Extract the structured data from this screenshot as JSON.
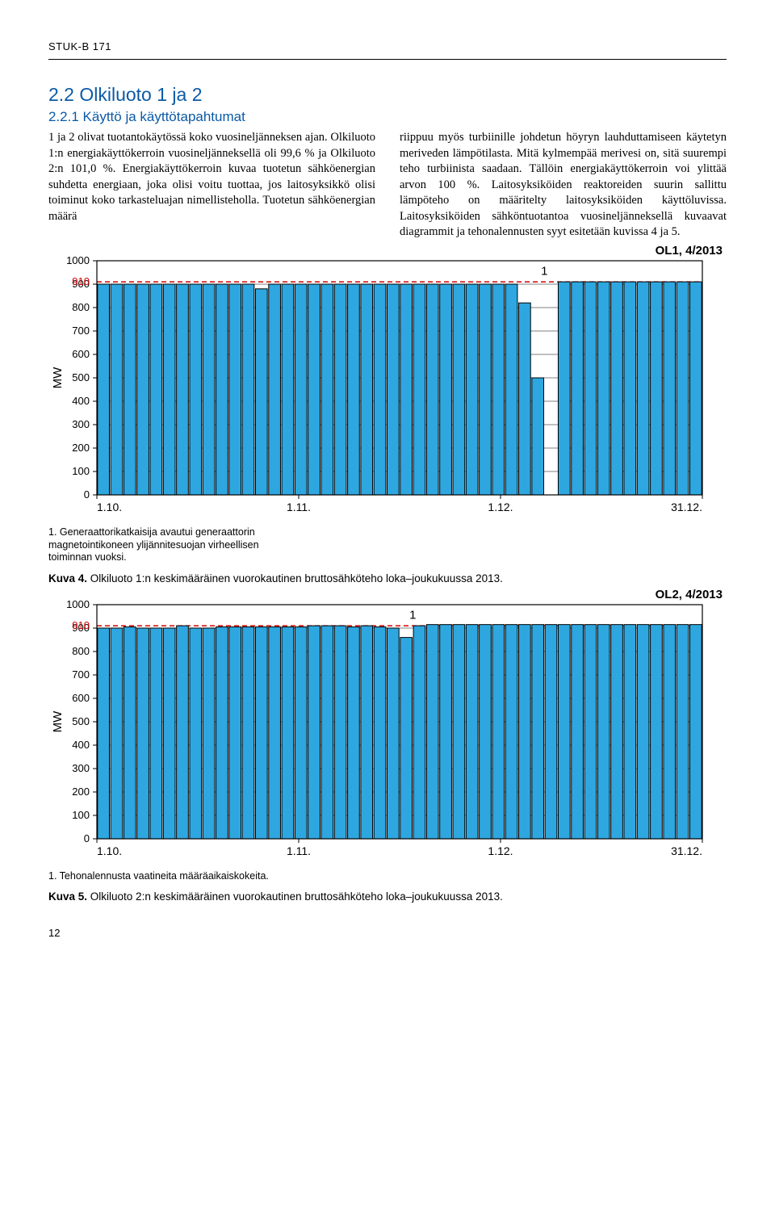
{
  "header": {
    "report_id": "STUK-B 171"
  },
  "section": {
    "title": "2.2 Olkiluoto 1 ja 2",
    "subtitle": "2.2.1 Käyttö ja käyttötapahtumat",
    "para_left": "1 ja 2 olivat tuotantokäytössä koko vuosineljänneksen ajan. Olkiluoto 1:n energiakäyttökerroin vuosineljänneksellä oli 99,6 % ja Olkiluoto 2:n 101,0 %. Energiakäyttökerroin kuvaa tuotetun sähköenergian suhdetta energiaan, joka olisi voitu tuottaa, jos laitosyksikkö olisi toiminut koko tarkasteluajan nimellisteholla. Tuotetun sähköenergian määrä",
    "para_right": "riippuu myös turbiinille johdetun höyryn lauhduttamiseen käytetyn meriveden lämpötilasta. Mitä kylmempää merivesi on, sitä suurempi teho turbiinista saadaan. Tällöin energiakäyttökerroin voi ylittää arvon 100 %. Laitosyksiköiden reaktoreiden suurin sallittu lämpöteho on määritelty laitosyksiköiden käyttöluvissa. Laitosyksiköiden sähköntuotantoa vuosineljänneksellä kuvaavat diagrammit ja tehonalennusten syyt esitetään kuvissa 4 ja 5."
  },
  "chart1": {
    "title_right": "OL1, 4/2013",
    "type": "bar",
    "ylabel": "MW",
    "y_ticks": [
      0,
      100,
      200,
      300,
      400,
      500,
      600,
      700,
      800,
      900,
      1000
    ],
    "ref_line_value": 910,
    "ref_line_label": "910",
    "ref_line_color": "#d40000",
    "bar_fill": "#2ea7e0",
    "bar_stroke": "#000000",
    "grid_color": "#000000",
    "background": "#ffffff",
    "x_ticks": [
      "1.10.",
      "1.11.",
      "1.12.",
      "31.12."
    ],
    "annotation": "1",
    "n_bars": 46,
    "values": [
      900,
      900,
      900,
      900,
      900,
      900,
      900,
      900,
      900,
      900,
      900,
      900,
      880,
      900,
      900,
      900,
      900,
      900,
      900,
      900,
      900,
      900,
      900,
      900,
      900,
      900,
      900,
      900,
      900,
      900,
      900,
      900,
      820,
      500,
      0,
      910,
      910,
      910,
      910,
      910,
      910,
      910,
      910,
      910,
      910,
      910
    ],
    "footnote": "1.  Generaattorikatkaisija avautui generaattorin\n     magnetointikoneen ylijännitesuojan virheellisen\n     toiminnan vuoksi.",
    "caption_bold": "Kuva 4.",
    "caption": " Olkiluoto 1:n keskimääräinen vuorokautinen bruttosähköteho loka–joukukuussa 2013."
  },
  "chart2": {
    "title_right": "OL2, 4/2013",
    "type": "bar",
    "ylabel": "MW",
    "y_ticks": [
      0,
      100,
      200,
      300,
      400,
      500,
      600,
      700,
      800,
      900,
      1000
    ],
    "ref_line_value": 910,
    "ref_line_label": "910",
    "ref_line_color": "#d40000",
    "bar_fill": "#2ea7e0",
    "bar_stroke": "#000000",
    "grid_color": "#000000",
    "background": "#ffffff",
    "x_ticks": [
      "1.10.",
      "1.11.",
      "1.12.",
      "31.12."
    ],
    "annotation": "1",
    "n_bars": 46,
    "values": [
      900,
      900,
      905,
      900,
      900,
      900,
      910,
      900,
      900,
      905,
      905,
      905,
      905,
      905,
      905,
      905,
      910,
      910,
      910,
      905,
      910,
      905,
      900,
      860,
      910,
      915,
      915,
      915,
      915,
      915,
      915,
      915,
      915,
      915,
      915,
      915,
      915,
      915,
      915,
      915,
      915,
      915,
      915,
      915,
      915,
      915
    ],
    "footnote": "1.  Tehonalennusta vaatineita määräaikaiskokeita.",
    "caption_bold": "Kuva 5.",
    "caption": " Olkiluoto 2:n keskimääräinen vuorokautinen bruttosähköteho loka–joukukuussa 2013."
  },
  "page_number": "12"
}
